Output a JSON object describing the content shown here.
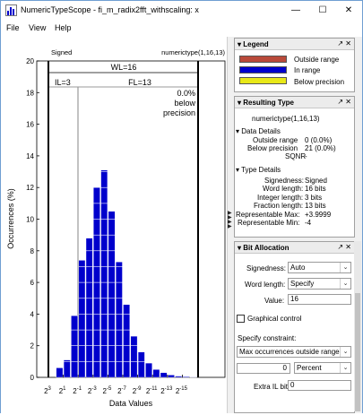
{
  "window": {
    "title": "NumericTypeScope - fi_m_radix2fft_withscaling: x",
    "minimize": "—",
    "maximize": "☐",
    "close": "✕"
  },
  "menu": [
    "File",
    "View",
    "Help"
  ],
  "histogram": {
    "signed_label": "Signed",
    "numerictype_label": "numerictype(1,16,13)",
    "wl_label": "WL=16",
    "il_label": "IL=3",
    "fl_label": "FL=13",
    "precision_pct": "0.0%",
    "precision_text_1": "below",
    "precision_text_2": "precision",
    "ylabel": "Occurrences (%)",
    "xlabel": "Data Values"
  },
  "chart_data": {
    "type": "bar",
    "xlabel": "Data Values",
    "ylabel": "Occurrences (%)",
    "ylim": [
      0,
      20
    ],
    "yticks": [
      0,
      2,
      4,
      6,
      8,
      10,
      12,
      14,
      16,
      18,
      20
    ],
    "xticks": [
      "2^3",
      "2^1",
      "2^-1",
      "2^-3",
      "2^-5",
      "2^-7",
      "2^-9",
      "2^-11",
      "2^-13",
      "2^-15"
    ],
    "bin_exponents": [
      3,
      2,
      1,
      0,
      -1,
      -2,
      -3,
      -4,
      -5,
      -6,
      -7,
      -8,
      -9,
      -10,
      -11,
      -12,
      -13,
      -14,
      -15,
      -16
    ],
    "values": [
      0,
      0.6,
      1.1,
      3.9,
      7.4,
      8.8,
      12.0,
      13.1,
      10.5,
      7.3,
      4.6,
      2.6,
      1.6,
      0.9,
      0.5,
      0.3,
      0.15,
      0.08,
      0.05,
      0.03
    ],
    "series": [
      {
        "name": "In range",
        "color": "#0000cc"
      }
    ],
    "grid": false
  },
  "legend": {
    "title": "Legend",
    "controls": "↗ ✕",
    "items": [
      {
        "label": "Outside range",
        "color": "#b94a3a"
      },
      {
        "label": "In range",
        "color": "#0000cc"
      },
      {
        "label": "Below precision",
        "color": "#e8e818"
      }
    ]
  },
  "resulting_type": {
    "title": "Resulting Type",
    "controls": "↗ ✕",
    "value": "numerictype(1,16,13)",
    "data_details": {
      "heading": "Data Details",
      "rows": [
        {
          "label": "Outside range",
          "value": "0 (0.0%)"
        },
        {
          "label": "Below precision",
          "value": "21 (0.0%)"
        },
        {
          "label": "SQNR",
          "value": "-"
        }
      ]
    },
    "type_details": {
      "heading": "Type Details",
      "rows": [
        {
          "label": "Signedness:",
          "value": "Signed"
        },
        {
          "label": "Word length:",
          "value": "16 bits"
        },
        {
          "label": "Integer length:",
          "value": "3 bits"
        },
        {
          "label": "Fraction length:",
          "value": "13 bits"
        },
        {
          "label": "Representable Max:",
          "value": "+3.9999"
        },
        {
          "label": "Representable Min:",
          "value": "-4"
        }
      ]
    }
  },
  "bit_allocation": {
    "title": "Bit Allocation",
    "controls": "↗ ✕",
    "signedness_label": "Signedness:",
    "signedness_value": "Auto",
    "word_length_label": "Word length:",
    "word_length_value": "Specify",
    "value_label": "Value:",
    "value_value": "16",
    "graphical_control_label": "Graphical control",
    "constraint_label": "Specify constraint:",
    "constraint_value": "Max occurrences outside range",
    "count_value": "0",
    "unit_value": "Percent",
    "extra_il_label": "Extra IL bits:",
    "extra_il_value": "0"
  }
}
